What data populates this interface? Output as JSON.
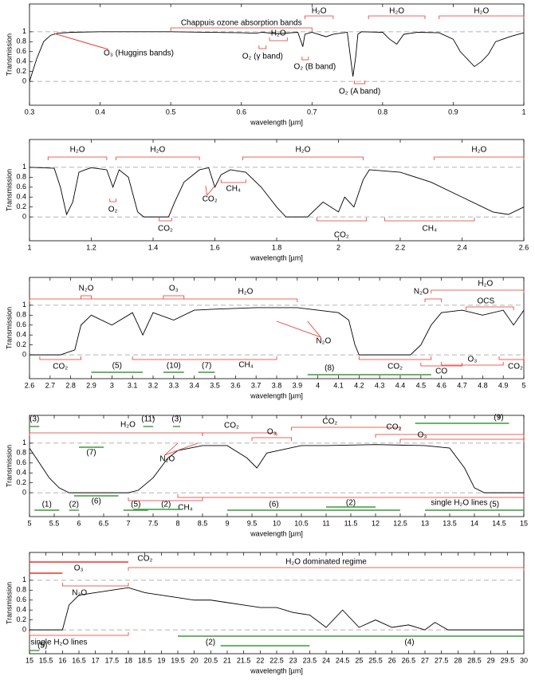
{
  "chart_data": [
    {
      "type": "line",
      "ylabel": "Transmission",
      "xlabel": "wavelength [µm]",
      "color": "#000000",
      "reflines": [
        0,
        1
      ],
      "xlim": [
        0.3,
        1
      ],
      "xticks": [
        0.3,
        0.4,
        0.5,
        0.6,
        0.7,
        0.8,
        0.9,
        1
      ],
      "ylim": [
        -0.48,
        1.56
      ],
      "yticks": [
        0,
        0.2,
        0.4,
        0.6,
        0.8,
        1
      ],
      "x": [
        0.3,
        0.31,
        0.32,
        0.33,
        0.34,
        0.36,
        0.4,
        0.5,
        0.6,
        0.62,
        0.63,
        0.65,
        0.68,
        0.687,
        0.69,
        0.7,
        0.72,
        0.73,
        0.75,
        0.758,
        0.762,
        0.765,
        0.77,
        0.8,
        0.81,
        0.82,
        0.83,
        0.85,
        0.88,
        0.9,
        0.91,
        0.93,
        0.94,
        0.95,
        0.96,
        0.97,
        0.98,
        1.0
      ],
      "values": [
        0,
        0.45,
        0.8,
        0.93,
        0.97,
        0.99,
        1,
        1,
        0.98,
        0.97,
        0.99,
        0.96,
        0.99,
        0.7,
        0.95,
        0.99,
        0.9,
        0.95,
        0.99,
        0.1,
        0.5,
        0.95,
        1,
        0.99,
        0.85,
        0.75,
        0.95,
        0.99,
        0.98,
        0.85,
        0.6,
        0.3,
        0.4,
        0.55,
        0.8,
        0.85,
        0.9,
        0.98
      ],
      "annotations": [
        {
          "label": "Chappuis ozone absorption bands",
          "range": [
            0.5,
            0.7
          ],
          "color": "#e8332a"
        },
        {
          "label": "H₂O",
          "range": [
            0.69,
            0.73
          ],
          "color": "#e8332a"
        },
        {
          "label": "H₂O",
          "range": [
            0.78,
            0.86
          ],
          "color": "#e8332a"
        },
        {
          "label": "H₂O",
          "range": [
            0.88,
            1.0
          ],
          "color": "#e8332a"
        },
        {
          "label": "H₂O",
          "range": [
            0.64,
            0.665
          ],
          "color": "#e8332a"
        },
        {
          "label": "O₂ (γ band)",
          "range": [
            0.625,
            0.635
          ],
          "color": "#e8332a"
        },
        {
          "label": "O₂ (B band)",
          "range": [
            0.686,
            0.695
          ],
          "color": "#e8332a"
        },
        {
          "label": "O₂ (A band)",
          "range": [
            0.76,
            0.775
          ],
          "color": "#e8332a"
        },
        {
          "label": "O₃ (Huggins bands)",
          "range": [
            0.335,
            0.335
          ],
          "color": "#e8332a"
        }
      ]
    },
    {
      "type": "line",
      "ylabel": "Transmission",
      "xlabel": "wavelength [µm]",
      "color": "#000000",
      "reflines": [
        0,
        1
      ],
      "xlim": [
        1,
        2.6
      ],
      "xticks": [
        1,
        1.2,
        1.4,
        1.6,
        1.8,
        2,
        2.2,
        2.4,
        2.6
      ],
      "ylim": [
        -0.48,
        1.56
      ],
      "yticks": [
        0,
        0.2,
        0.4,
        0.6,
        0.8,
        1
      ],
      "x": [
        1.0,
        1.08,
        1.1,
        1.12,
        1.14,
        1.16,
        1.18,
        1.2,
        1.25,
        1.27,
        1.29,
        1.32,
        1.35,
        1.37,
        1.45,
        1.47,
        1.5,
        1.55,
        1.58,
        1.6,
        1.62,
        1.65,
        1.7,
        1.75,
        1.8,
        1.83,
        1.9,
        1.95,
        2.0,
        2.02,
        2.05,
        2.08,
        2.1,
        2.2,
        2.3,
        2.4,
        2.5,
        2.55,
        2.6
      ],
      "values": [
        1,
        0.98,
        0.6,
        0.05,
        0.3,
        0.9,
        0.95,
        0.99,
        0.95,
        0.6,
        0.95,
        0.8,
        0.1,
        0,
        0,
        0.3,
        0.7,
        0.95,
        0.99,
        0.6,
        0.85,
        0.95,
        0.9,
        0.6,
        0.2,
        0,
        0,
        0.3,
        0.1,
        0.4,
        0.2,
        0.75,
        0.95,
        0.9,
        0.7,
        0.4,
        0.1,
        0.05,
        0.2
      ],
      "annotations": [
        {
          "label": "H₂O",
          "range": [
            1.06,
            1.25
          ],
          "color": "#e8332a"
        },
        {
          "label": "H₂O",
          "range": [
            1.28,
            1.55
          ],
          "color": "#e8332a"
        },
        {
          "label": "H₂O",
          "range": [
            1.69,
            2.08
          ],
          "color": "#e8332a"
        },
        {
          "label": "H₂O",
          "range": [
            2.31,
            2.6
          ],
          "color": "#e8332a"
        },
        {
          "label": "O₂",
          "range": [
            1.26,
            1.28
          ],
          "color": "#e8332a"
        },
        {
          "label": "CO₂",
          "range": [
            1.57,
            1.6
          ],
          "color": "#e8332a"
        },
        {
          "label": "CH₄",
          "range": [
            1.62,
            1.7
          ],
          "color": "#e8332a"
        },
        {
          "label": "CO₂",
          "range": [
            1.42,
            1.46
          ],
          "color": "#e8332a"
        },
        {
          "label": "CO₂",
          "range": [
            1.93,
            2.09
          ],
          "color": "#e8332a"
        },
        {
          "label": "CH₄",
          "range": [
            2.15,
            2.44
          ],
          "color": "#e8332a"
        }
      ]
    },
    {
      "type": "line",
      "ylabel": "Transmission",
      "xlabel": "wavelength [µm]",
      "color": "#000000",
      "reflines": [
        0,
        1
      ],
      "xlim": [
        2.6,
        5
      ],
      "xticks": [
        2.6,
        2.7,
        2.8,
        2.9,
        3,
        3.1,
        3.2,
        3.3,
        3.4,
        3.5,
        3.6,
        3.7,
        3.8,
        3.9,
        4,
        4.1,
        4.2,
        4.3,
        4.4,
        4.5,
        4.6,
        4.7,
        4.8,
        4.9,
        5
      ],
      "ylim": [
        -0.48,
        1.56
      ],
      "yticks": [
        0,
        0.2,
        0.4,
        0.6,
        0.8,
        1
      ],
      "x": [
        2.6,
        2.75,
        2.82,
        2.85,
        2.9,
        3.0,
        3.1,
        3.15,
        3.2,
        3.3,
        3.4,
        3.5,
        3.7,
        3.9,
        4.0,
        4.1,
        4.15,
        4.18,
        4.2,
        4.45,
        4.5,
        4.55,
        4.6,
        4.7,
        4.8,
        4.9,
        4.95,
        5
      ],
      "values": [
        0,
        0,
        0.1,
        0.6,
        0.8,
        0.6,
        0.85,
        0.4,
        0.85,
        0.7,
        0.9,
        0.92,
        0.95,
        0.95,
        0.9,
        0.85,
        0.7,
        0.2,
        0,
        0,
        0.2,
        0.6,
        0.85,
        0.9,
        0.8,
        0.9,
        0.6,
        0.9
      ],
      "annotations": [
        {
          "label": "N₂O",
          "range": [
            2.85,
            2.9
          ],
          "color": "#e8332a"
        },
        {
          "label": "O₃",
          "range": [
            3.25,
            3.35
          ],
          "color": "#e8332a"
        },
        {
          "label": "H₂O",
          "range": [
            2.6,
            3.9
          ],
          "color": "#e8332a"
        },
        {
          "label": "N₂O",
          "range": [
            4.52,
            4.6
          ],
          "color": "#e8332a"
        },
        {
          "label": "H₂O",
          "range": [
            4.55,
            5
          ],
          "color": "#e8332a"
        },
        {
          "label": "OCS",
          "range": [
            4.72,
            4.95
          ],
          "color": "#e8332a"
        },
        {
          "label": "N₂O",
          "range": [
            3.8,
            3.95
          ],
          "color": "#e8332a"
        },
        {
          "label": "CO₂",
          "range": [
            2.65,
            2.85
          ],
          "color": "#e8332a"
        },
        {
          "label": "CH₄",
          "range": [
            3.1,
            3.8
          ],
          "color": "#e8332a"
        },
        {
          "label": "CO₂",
          "range": [
            4.2,
            4.55
          ],
          "color": "#e8332a"
        },
        {
          "label": "CO",
          "range": [
            4.5,
            4.7
          ],
          "color": "#e8332a"
        },
        {
          "label": "O₃",
          "range": [
            4.6,
            4.9
          ],
          "color": "#e8332a"
        },
        {
          "label": "CO₂",
          "range": [
            4.88,
            5.0
          ],
          "color": "#e8332a"
        },
        {
          "label": "(5)",
          "range": [
            2.9,
            3.15
          ],
          "color": "#3a9a3a"
        },
        {
          "label": "(10)",
          "range": [
            3.25,
            3.35
          ],
          "color": "#3a9a3a"
        },
        {
          "label": "(7)",
          "range": [
            3.42,
            3.5
          ],
          "color": "#3a9a3a"
        },
        {
          "label": "(8)",
          "range": [
            3.95,
            4.55
          ],
          "color": "#3a9a3a"
        }
      ]
    },
    {
      "type": "line",
      "ylabel": "Transmission",
      "xlabel": "wavelength [µm]",
      "color": "#000000",
      "reflines": [
        0,
        1
      ],
      "xlim": [
        5,
        15
      ],
      "xticks": [
        5,
        5.5,
        6,
        6.5,
        7,
        7.5,
        8,
        8.5,
        9,
        9.5,
        10,
        10.5,
        11,
        11.5,
        12,
        12.5,
        13,
        13.5,
        14,
        14.5,
        15
      ],
      "ylim": [
        -0.48,
        1.56
      ],
      "yticks": [
        0,
        0.2,
        0.4,
        0.6,
        0.8,
        1
      ],
      "x": [
        5,
        5.2,
        5.4,
        5.6,
        5.8,
        7.0,
        7.2,
        7.5,
        7.8,
        8.0,
        8.5,
        9.0,
        9.4,
        9.6,
        9.8,
        10.5,
        11,
        12,
        13,
        13.5,
        13.8,
        14,
        14.2,
        15
      ],
      "values": [
        0.9,
        0.6,
        0.3,
        0.1,
        0,
        0,
        0.05,
        0.3,
        0.7,
        0.85,
        0.95,
        0.95,
        0.7,
        0.5,
        0.8,
        0.95,
        0.95,
        0.97,
        0.95,
        0.9,
        0.5,
        0.1,
        0,
        0
      ],
      "annotations": [
        {
          "label": "(3)",
          "range": [
            5,
            5.2
          ],
          "color": "#3a9a3a"
        },
        {
          "label": "(11)",
          "range": [
            7.3,
            7.5
          ],
          "color": "#3a9a3a"
        },
        {
          "label": "(3)",
          "range": [
            7.9,
            8.05
          ],
          "color": "#3a9a3a"
        },
        {
          "label": "(9)",
          "range": [
            12.8,
            14.7
          ],
          "color": "#3a9a3a"
        },
        {
          "label": "H₂O",
          "range": [
            5,
            8.5
          ],
          "color": "#e8332a"
        },
        {
          "label": "(7)",
          "range": [
            6,
            6.5
          ],
          "color": "#3a9a3a"
        },
        {
          "label": "N₂O",
          "range": [
            8.0,
            8.4
          ],
          "color": "#e8332a"
        },
        {
          "label": "CO₂",
          "range": [
            8.5,
            10
          ],
          "color": "#e8332a"
        },
        {
          "label": "O₃",
          "range": [
            9.5,
            10.3
          ],
          "color": "#e8332a"
        },
        {
          "label": "CO₂",
          "range": [
            10.3,
            12.5
          ],
          "color": "#e8332a"
        },
        {
          "label": "CO₂",
          "range": [
            12,
            15
          ],
          "color": "#e8332a"
        },
        {
          "label": "O₃",
          "range": [
            12.5,
            15
          ],
          "color": "#e8332a"
        },
        {
          "label": "(1)",
          "range": [
            5.1,
            5.6
          ],
          "color": "#3a9a3a"
        },
        {
          "label": "(2)",
          "range": [
            5.8,
            6.0
          ],
          "color": "#3a9a3a"
        },
        {
          "label": "(6)",
          "range": [
            5.9,
            6.8
          ],
          "color": "#3a9a3a"
        },
        {
          "label": "(5)",
          "range": [
            6.9,
            7.4
          ],
          "color": "#3a9a3a"
        },
        {
          "label": "CH₄",
          "range": [
            7.0,
            8.5
          ],
          "color": "#e8332a"
        },
        {
          "label": "(2)",
          "range": [
            7.1,
            8.1
          ],
          "color": "#3a9a3a"
        },
        {
          "label": "single H₂O lines",
          "range": [
            8,
            15
          ],
          "color": "#e8332a"
        },
        {
          "label": "(6)",
          "range": [
            9,
            12.5
          ],
          "color": "#3a9a3a"
        },
        {
          "label": "(2)",
          "range": [
            11,
            12
          ],
          "color": "#3a9a3a"
        },
        {
          "label": "(5)",
          "range": [
            13,
            15
          ],
          "color": "#3a9a3a"
        }
      ]
    },
    {
      "type": "line",
      "ylabel": "Transmission",
      "xlabel": "wavelength [µm]",
      "color": "#000000",
      "reflines": [
        0,
        1
      ],
      "xlim": [
        15,
        30
      ],
      "xticks": [
        15,
        15.5,
        16,
        16.5,
        17,
        17.5,
        18,
        18.5,
        19,
        19.5,
        20,
        20.5,
        21,
        21.5,
        22,
        22.5,
        23,
        23.5,
        24,
        24.5,
        25,
        25.5,
        26,
        26.5,
        27,
        27.5,
        28,
        28.5,
        29,
        29.5,
        30
      ],
      "ylim": [
        -0.48,
        1.56
      ],
      "yticks": [
        0,
        0.2,
        0.4,
        0.6,
        0.8,
        1
      ],
      "x": [
        15,
        16,
        16.2,
        16.5,
        17,
        17.5,
        18,
        18.5,
        19,
        19.5,
        20,
        20.5,
        21,
        21.5,
        22,
        22.5,
        23,
        23.5,
        24,
        24.5,
        25,
        25.5,
        26,
        26.5,
        27,
        27.3,
        27.7,
        30
      ],
      "values": [
        0,
        0,
        0.5,
        0.7,
        0.75,
        0.8,
        0.85,
        0.75,
        0.7,
        0.65,
        0.6,
        0.6,
        0.55,
        0.5,
        0.45,
        0.45,
        0.35,
        0.3,
        0.05,
        0.4,
        0.05,
        0.2,
        0.05,
        0.1,
        0,
        0.15,
        0,
        0
      ],
      "annotations": [
        {
          "label": "CO₂",
          "range": [
            15,
            18
          ],
          "color": "#e8332a"
        },
        {
          "label": "H₂O dominated regime",
          "range": [
            18,
            30
          ],
          "color": "#e8332a"
        },
        {
          "label": "O₃",
          "range": [
            15,
            16
          ],
          "color": "#e8332a"
        },
        {
          "label": "N₂O",
          "range": [
            16,
            18
          ],
          "color": "#e8332a"
        },
        {
          "label": "single H₂O lines",
          "range": [
            15,
            18
          ],
          "color": "#e8332a"
        },
        {
          "label": "(5)",
          "range": [
            15,
            15.3
          ],
          "color": "#3a9a3a"
        },
        {
          "label": "(2)",
          "range": [
            19.5,
            30
          ],
          "color": "#3a9a3a"
        },
        {
          "label": "(4)",
          "range": [
            20.8,
            23.5
          ],
          "color": "#3a9a3a"
        }
      ]
    }
  ]
}
